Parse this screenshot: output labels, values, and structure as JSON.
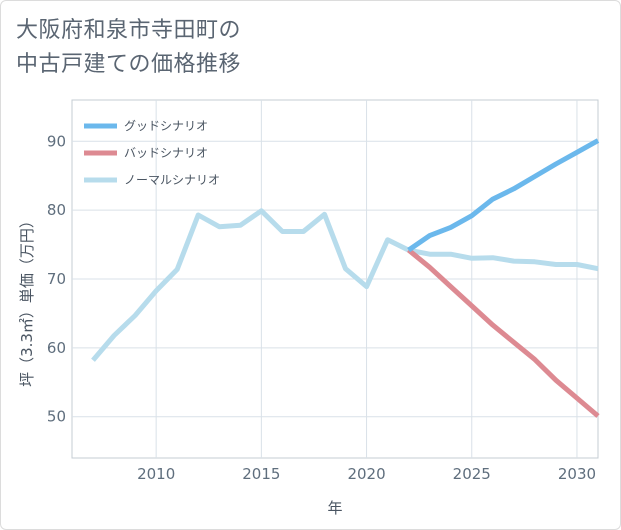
{
  "title_lines": [
    "大阪府和泉市寺田町の",
    "中古戸建ての価格推移"
  ],
  "chart_data": {
    "type": "line",
    "title": "大阪府和泉市寺田町の中古戸建ての価格推移",
    "xlabel": "年",
    "ylabel": "坪（3.3㎡）単価（万円）",
    "xlim": [
      2006,
      2031
    ],
    "ylim": [
      44,
      96
    ],
    "xticks": [
      2010,
      2015,
      2020,
      2025,
      2030
    ],
    "yticks": [
      50,
      60,
      70,
      80,
      90
    ],
    "grid": true,
    "legend_position": "top-left",
    "series": [
      {
        "name": "グッドシナリオ",
        "color": "#6bb8ec",
        "x": [
          2022,
          2023,
          2024,
          2025,
          2026,
          2027,
          2028,
          2029,
          2030,
          2031
        ],
        "y": [
          74.2,
          76.3,
          77.5,
          79.2,
          81.6,
          83.1,
          84.9,
          86.7,
          88.4,
          90.1
        ]
      },
      {
        "name": "バッドシナリオ",
        "color": "#dd8a92",
        "x": [
          2022,
          2023,
          2024,
          2025,
          2026,
          2027,
          2028,
          2029,
          2030,
          2031
        ],
        "y": [
          74.2,
          71.7,
          68.9,
          66.1,
          63.3,
          60.8,
          58.3,
          55.3,
          52.7,
          50.1
        ]
      },
      {
        "name": "ノーマルシナリオ",
        "color": "#b7dcec",
        "x": [
          2007,
          2008,
          2009,
          2010,
          2011,
          2012,
          2013,
          2014,
          2015,
          2016,
          2017,
          2018,
          2019,
          2020,
          2021,
          2022,
          2023,
          2024,
          2025,
          2026,
          2027,
          2028,
          2029,
          2030,
          2031
        ],
        "y": [
          58.2,
          61.8,
          64.7,
          68.3,
          71.4,
          79.3,
          77.6,
          77.8,
          79.9,
          76.9,
          76.9,
          79.4,
          71.5,
          68.9,
          75.7,
          74.2,
          73.6,
          73.6,
          73.0,
          73.1,
          72.6,
          72.5,
          72.1,
          72.1,
          71.5
        ]
      }
    ]
  }
}
